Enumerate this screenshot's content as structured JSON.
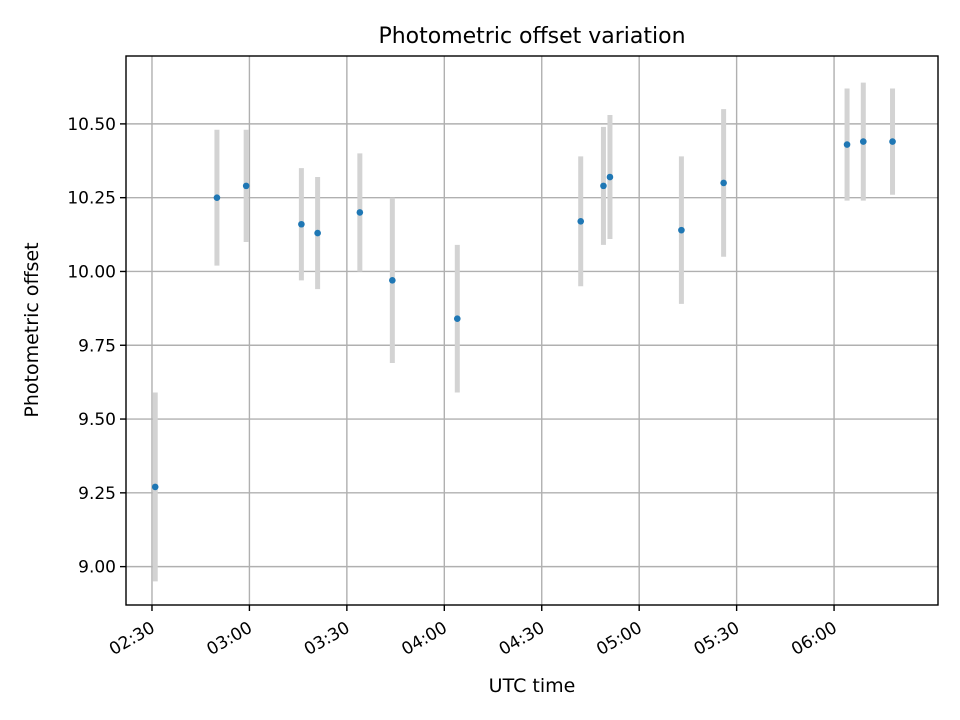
{
  "chart_data": {
    "type": "scatter",
    "title": "Photometric offset variation",
    "xlabel": "UTC time",
    "ylabel": "Photometric offset",
    "x_axis_type": "time",
    "xlim": [
      "02:22",
      "06:32"
    ],
    "ylim": [
      8.87,
      10.73
    ],
    "x_ticks": [
      "02:30",
      "03:00",
      "03:30",
      "04:00",
      "04:30",
      "05:00",
      "05:30",
      "06:00"
    ],
    "y_ticks": [
      9.0,
      9.25,
      9.5,
      9.75,
      10.0,
      10.25,
      10.5
    ],
    "y_tick_labels": [
      "9.00",
      "9.25",
      "9.50",
      "9.75",
      "10.00",
      "10.25",
      "10.50"
    ],
    "grid": true,
    "colors": {
      "point": "#1f77b4",
      "errorbar": "#d3d3d3",
      "grid": "#b0b0b0"
    },
    "series": [
      {
        "points": [
          {
            "x": "02:31",
            "y": 9.27,
            "yerr": 0.32
          },
          {
            "x": "02:50",
            "y": 10.25,
            "yerr": 0.23
          },
          {
            "x": "02:59",
            "y": 10.29,
            "yerr": 0.19
          },
          {
            "x": "03:16",
            "y": 10.16,
            "yerr": 0.19
          },
          {
            "x": "03:21",
            "y": 10.13,
            "yerr": 0.19
          },
          {
            "x": "03:34",
            "y": 10.2,
            "yerr": 0.2
          },
          {
            "x": "03:44",
            "y": 9.97,
            "yerr": 0.28
          },
          {
            "x": "04:04",
            "y": 9.84,
            "yerr": 0.25
          },
          {
            "x": "04:42",
            "y": 10.17,
            "yerr": 0.22
          },
          {
            "x": "04:49",
            "y": 10.29,
            "yerr": 0.2
          },
          {
            "x": "04:51",
            "y": 10.32,
            "yerr": 0.21
          },
          {
            "x": "05:13",
            "y": 10.14,
            "yerr": 0.25
          },
          {
            "x": "05:26",
            "y": 10.3,
            "yerr": 0.25
          },
          {
            "x": "06:04",
            "y": 10.43,
            "yerr": 0.19
          },
          {
            "x": "06:09",
            "y": 10.44,
            "yerr": 0.2
          },
          {
            "x": "06:18",
            "y": 10.44,
            "yerr": 0.18
          }
        ]
      }
    ]
  }
}
